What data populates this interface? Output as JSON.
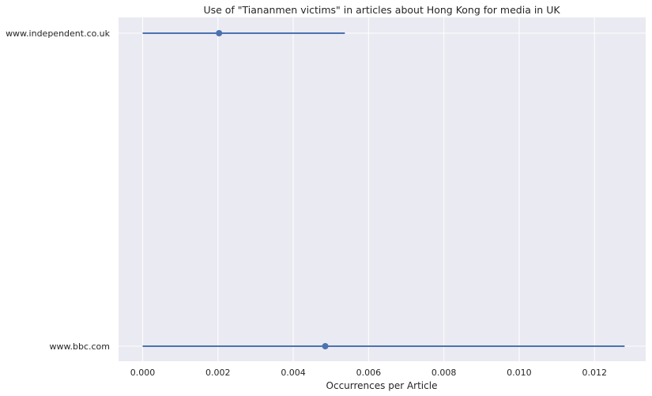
{
  "chart_data": {
    "type": "scatter",
    "title": "Use of \"Tiananmen victims\" in articles about Hong Kong for media in UK",
    "xlabel": "Occurrences per Article",
    "ylabel": "",
    "xlim": [
      -0.00064,
      0.01336
    ],
    "x_ticks": [
      "0.000",
      "0.002",
      "0.004",
      "0.006",
      "0.008",
      "0.010",
      "0.012"
    ],
    "x_tick_values": [
      0.0,
      0.002,
      0.004,
      0.006,
      0.008,
      0.01,
      0.012
    ],
    "categories": [
      "www.independent.co.uk",
      "www.bbc.com"
    ],
    "points": [
      {
        "label": "www.independent.co.uk",
        "value": 0.00203,
        "ci_low": 0.0,
        "ci_high": 0.00537
      },
      {
        "label": "www.bbc.com",
        "value": 0.00485,
        "ci_low": 0.0,
        "ci_high": 0.0128
      }
    ],
    "grid": true,
    "colors": {
      "background": "#eaeaf2",
      "grid": "#ffffff",
      "marker": "#4c72b0"
    }
  }
}
